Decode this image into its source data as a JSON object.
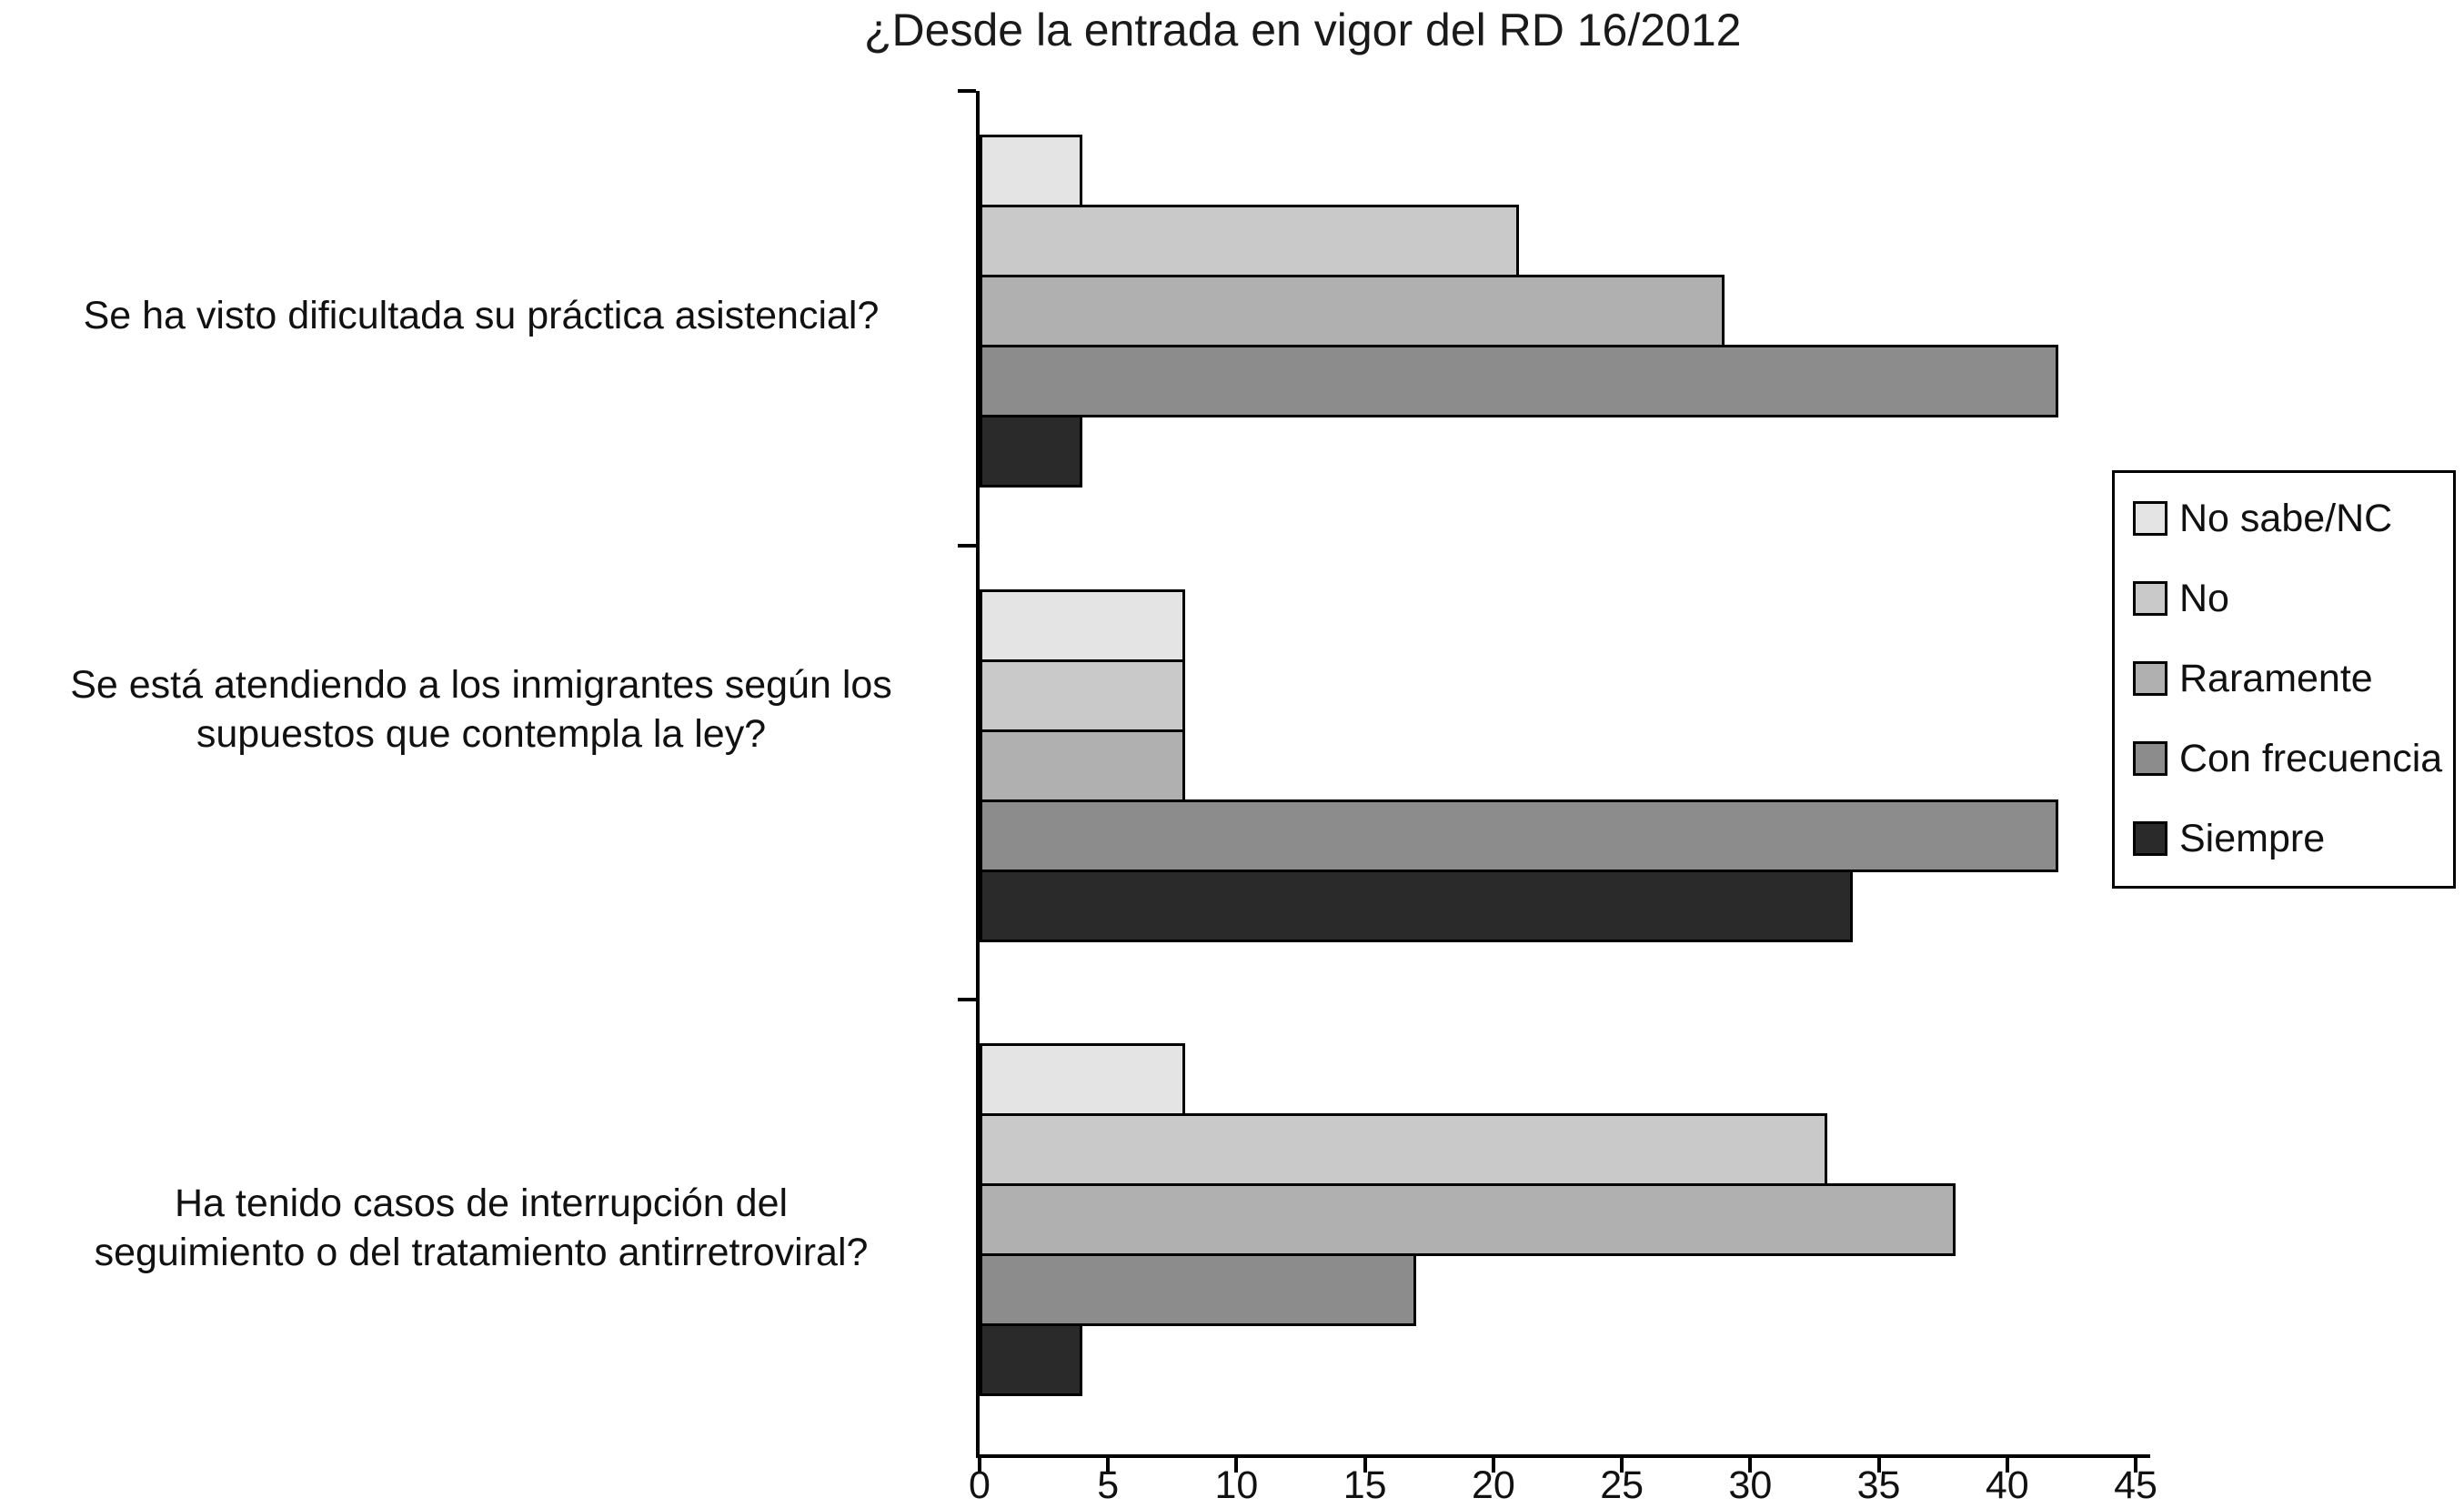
{
  "chart_data": {
    "type": "bar",
    "orientation": "horizontal",
    "title": "¿Desde la entrada en vigor del RD 16/2012",
    "categories": [
      [
        "Se ha visto dificultada su práctica asistencial?"
      ],
      [
        "Se está atendiendo a los inmigrantes según los",
        "supuestos que contempla la ley?"
      ],
      [
        "Ha tenido casos de interrupción del",
        "seguimiento o del tratamiento antirretroviral?"
      ]
    ],
    "series": [
      {
        "name": "No sabe/NC",
        "color": "#e4e4e4",
        "values": [
          4,
          8,
          8
        ]
      },
      {
        "name": "No",
        "color": "#c9c9c9",
        "values": [
          21,
          8,
          33
        ]
      },
      {
        "name": "Raramente",
        "color": "#b0b0b0",
        "values": [
          29,
          8,
          38
        ]
      },
      {
        "name": "Con frecuencia",
        "color": "#8c8c8c",
        "values": [
          42,
          42,
          17
        ]
      },
      {
        "name": "Siempre",
        "color": "#2a2a2a",
        "values": [
          4,
          34,
          4
        ]
      }
    ],
    "xlim": [
      0,
      45
    ],
    "x_ticks": [
      0,
      5,
      10,
      15,
      20,
      25,
      30,
      35,
      40,
      45
    ],
    "xlabel": "",
    "ylabel": "",
    "grid": false,
    "legend_position": "right",
    "legend_entries": [
      "No sabe/NC",
      "No",
      "Raramente",
      "Con frecuencia",
      "Siempre"
    ]
  }
}
